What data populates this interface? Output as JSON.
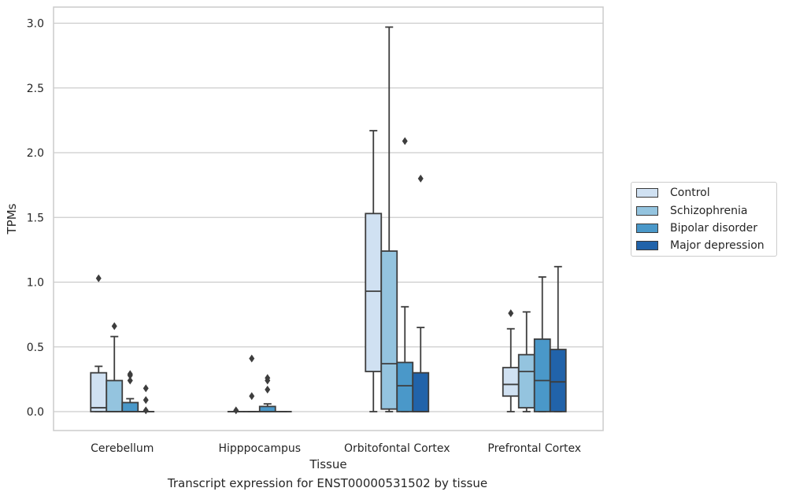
{
  "chart_data": {
    "type": "box",
    "title": "",
    "xlabel": "Tissue",
    "ylabel": "TPMs",
    "caption": "Transcript expression for ENST00000531502 by tissue",
    "ylim": [
      -0.15,
      3.12
    ],
    "yticks": [
      "0.0",
      "0.5",
      "1.0",
      "1.5",
      "2.0",
      "2.5",
      "3.0"
    ],
    "grid": true,
    "legend_position": "right",
    "categories": [
      "Cerebellum",
      "Hipppocampus",
      "Orbitofontal Cortex",
      "Prefrontal Cortex"
    ],
    "series": [
      {
        "name": "Control",
        "color": "#d0e1f2",
        "boxes": [
          {
            "whislo": 0.0,
            "q1": 0.0,
            "med": 0.03,
            "q3": 0.3,
            "whishi": 0.35,
            "fliers": [
              1.03
            ]
          },
          {
            "whislo": 0.0,
            "q1": 0.0,
            "med": 0.0,
            "q3": 0.0,
            "whishi": 0.0,
            "fliers": [
              0.01
            ]
          },
          {
            "whislo": 0.0,
            "q1": 0.31,
            "med": 0.93,
            "q3": 1.53,
            "whishi": 2.17,
            "fliers": []
          },
          {
            "whislo": 0.0,
            "q1": 0.12,
            "med": 0.21,
            "q3": 0.34,
            "whishi": 0.64,
            "fliers": [
              0.76
            ]
          }
        ]
      },
      {
        "name": "Schizophrenia",
        "color": "#94c4df",
        "boxes": [
          {
            "whislo": 0.0,
            "q1": 0.0,
            "med": 0.0,
            "q3": 0.24,
            "whishi": 0.58,
            "fliers": [
              0.66
            ]
          },
          {
            "whislo": 0.0,
            "q1": 0.0,
            "med": 0.0,
            "q3": 0.0,
            "whishi": 0.0,
            "fliers": [
              0.12,
              0.41
            ]
          },
          {
            "whislo": 0.0,
            "q1": 0.02,
            "med": 0.37,
            "q3": 1.24,
            "whishi": 2.97,
            "fliers": []
          },
          {
            "whislo": 0.0,
            "q1": 0.03,
            "med": 0.31,
            "q3": 0.44,
            "whishi": 0.77,
            "fliers": []
          }
        ]
      },
      {
        "name": "Bipolar disorder",
        "color": "#4a98c9",
        "boxes": [
          {
            "whislo": 0.0,
            "q1": 0.0,
            "med": 0.0,
            "q3": 0.07,
            "whishi": 0.1,
            "fliers": [
              0.24,
              0.28,
              0.29
            ]
          },
          {
            "whislo": 0.0,
            "q1": 0.0,
            "med": 0.0,
            "q3": 0.04,
            "whishi": 0.06,
            "fliers": [
              0.17,
              0.24,
              0.26
            ]
          },
          {
            "whislo": 0.0,
            "q1": 0.0,
            "med": 0.2,
            "q3": 0.38,
            "whishi": 0.81,
            "fliers": [
              2.09
            ]
          },
          {
            "whislo": 0.0,
            "q1": 0.0,
            "med": 0.24,
            "q3": 0.56,
            "whishi": 1.04,
            "fliers": []
          }
        ]
      },
      {
        "name": "Major depression",
        "color": "#2163aa",
        "boxes": [
          {
            "whislo": 0.0,
            "q1": 0.0,
            "med": 0.0,
            "q3": 0.0,
            "whishi": 0.0,
            "fliers": [
              0.01,
              0.09,
              0.18
            ]
          },
          {
            "whislo": 0.0,
            "q1": 0.0,
            "med": 0.0,
            "q3": 0.0,
            "whishi": 0.0,
            "fliers": []
          },
          {
            "whislo": 0.0,
            "q1": 0.0,
            "med": 0.0,
            "q3": 0.3,
            "whishi": 0.65,
            "fliers": [
              1.8
            ]
          },
          {
            "whislo": 0.0,
            "q1": 0.0,
            "med": 0.23,
            "q3": 0.48,
            "whishi": 1.12,
            "fliers": []
          }
        ]
      }
    ]
  }
}
